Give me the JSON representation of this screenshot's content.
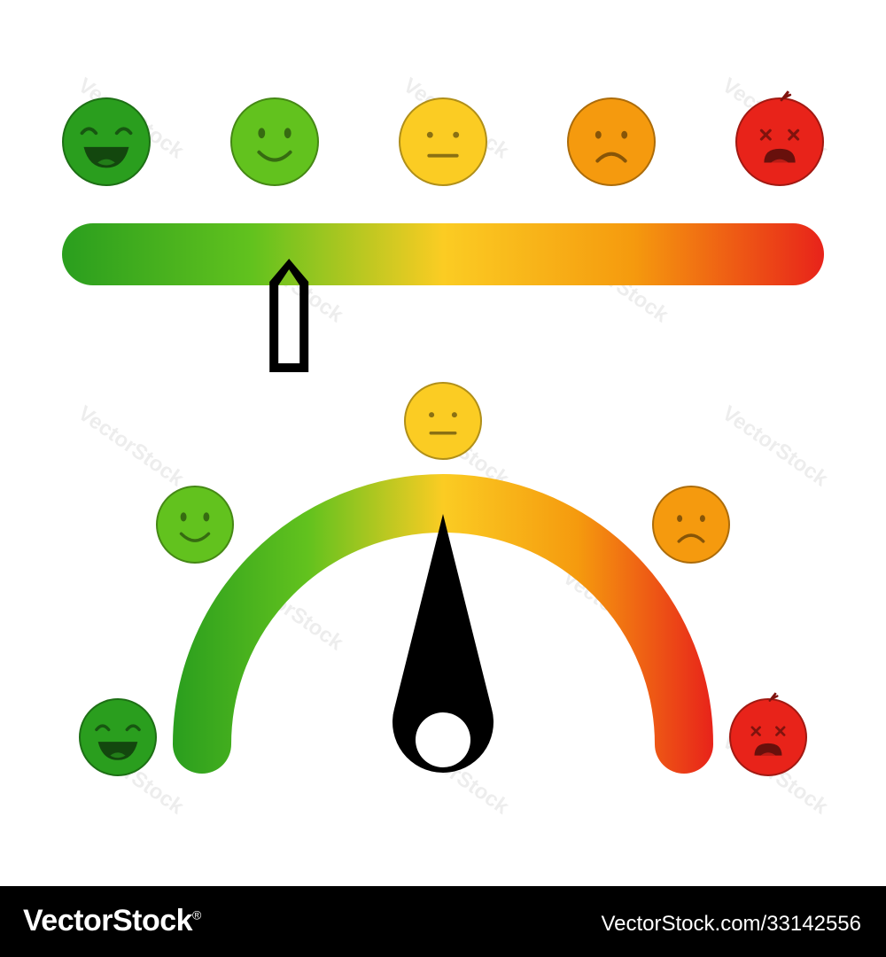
{
  "watermark": {
    "text": "VectorStock"
  },
  "footer": {
    "logo_text": "VectorStock",
    "logo_suffix": "®",
    "url_text": "VectorStock.com/33142556"
  },
  "palette": {
    "very_happy": "#2a9e1e",
    "happy": "#62c21e",
    "neutral": "#fbcc23",
    "sad": "#f59a0e",
    "angry": "#e8231a",
    "outline": "#000000"
  },
  "emotions": [
    {
      "mood": "very-happy",
      "icon": "laughing-face-icon",
      "color": "#2a9e1e"
    },
    {
      "mood": "happy",
      "icon": "smiling-face-icon",
      "color": "#62c21e"
    },
    {
      "mood": "neutral",
      "icon": "neutral-face-icon",
      "color": "#fbcc23"
    },
    {
      "mood": "sad",
      "icon": "frowning-face-icon",
      "color": "#f59a0e"
    },
    {
      "mood": "angry",
      "icon": "dizzy-face-icon",
      "color": "#e8231a"
    }
  ],
  "linear_scale": {
    "pointer_level": 0.28
  },
  "gauge": {
    "needle_level": 0.5
  }
}
